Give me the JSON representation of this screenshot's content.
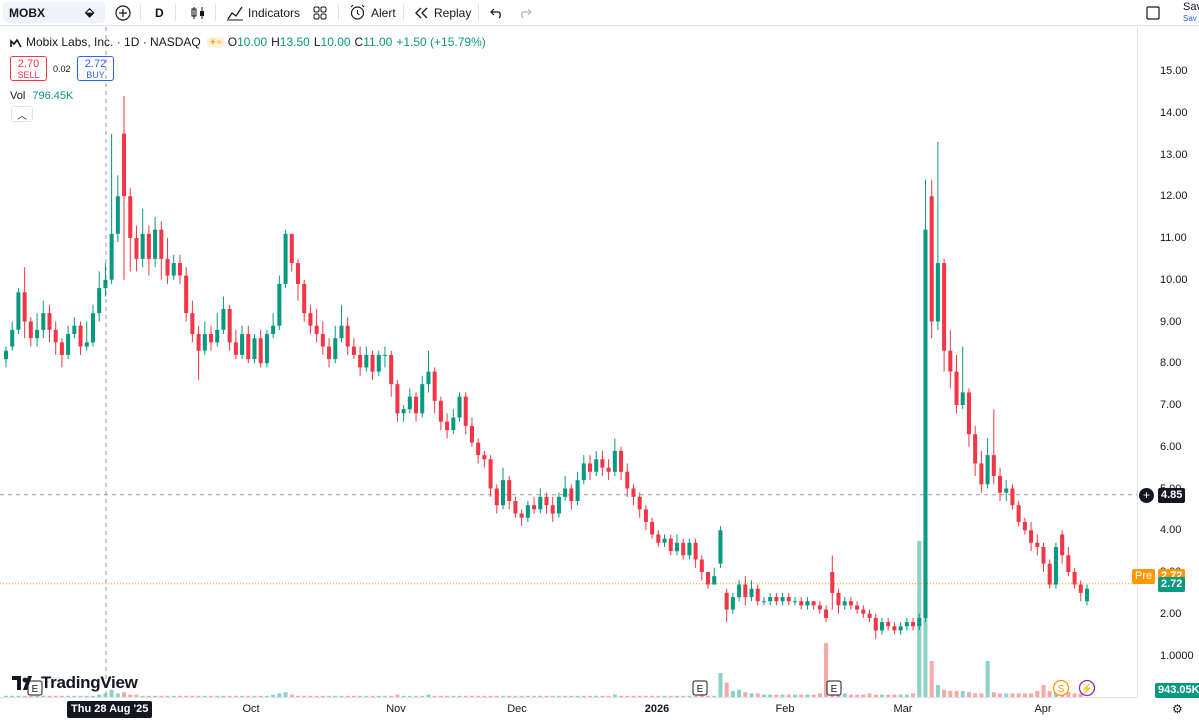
{
  "toolbar": {
    "symbol": "MOBX",
    "interval": "D",
    "indicators_label": "Indicators",
    "alert_label": "Alert",
    "replay_label": "Replay",
    "save_label": "Sav",
    "save_sub": "Sav"
  },
  "legend": {
    "title": "Mobix Labs, Inc. · 1D · NASDAQ",
    "open_label": "O",
    "open": "10.00",
    "high_label": "H",
    "high": "13.50",
    "low_label": "L",
    "low": "10.00",
    "close_label": "C",
    "close": "11.00",
    "change": "+1.50 (+15.79%)",
    "sell_price": "2.70",
    "sell_label": "SELL",
    "spread": "0.02",
    "buy_price": "2.72",
    "buy_label": "BUY",
    "vol_label": "Vol",
    "vol_value": "796.45K"
  },
  "price_axis": {
    "ticks": [
      "15.00",
      "14.00",
      "13.00",
      "12.00",
      "11.00",
      "10.00",
      "9.00",
      "8.00",
      "7.00",
      "6.00",
      "5.00",
      "4.00",
      "3.00",
      "2.00",
      "1.0000"
    ],
    "crosshair_value": "4.85",
    "pre_label": "Pre",
    "pre_value": "2.72",
    "last_value": "2.72",
    "volume_value": "943.05K"
  },
  "time_axis": {
    "crosshair_label": "Thu 28 Aug '25",
    "ticks": [
      "Oct",
      "Nov",
      "Dec",
      "2026",
      "Feb",
      "Mar",
      "Apr"
    ]
  },
  "brand": {
    "name": "TradingView"
  },
  "events": [
    {
      "type": "earnings",
      "label": "E"
    },
    {
      "type": "earnings",
      "label": "E"
    },
    {
      "type": "earnings",
      "label": "E"
    },
    {
      "type": "dividend",
      "label": "S"
    },
    {
      "type": "split",
      "label": "⚡"
    }
  ],
  "colors": {
    "up": "#089981",
    "down": "#f23645",
    "up_vol": "#8bd3c7",
    "down_vol": "#f7a9a7",
    "pre": "#ff9800"
  },
  "chart_data": {
    "type": "candlestick",
    "symbol": "MOBX",
    "ylim": [
      0.9,
      15.6
    ],
    "candles": [
      [
        8.1,
        8.3,
        7.9,
        8.4
      ],
      [
        8.4,
        8.8,
        8.3,
        9.0
      ],
      [
        8.8,
        9.7,
        8.7,
        9.8
      ],
      [
        9.7,
        9.0,
        8.6,
        10.3
      ],
      [
        9.0,
        8.6,
        8.4,
        9.1
      ],
      [
        8.6,
        8.8,
        8.4,
        9.2
      ],
      [
        8.8,
        9.2,
        8.6,
        9.5
      ],
      [
        9.2,
        8.8,
        8.5,
        9.4
      ],
      [
        8.8,
        8.5,
        8.2,
        9.0
      ],
      [
        8.5,
        8.2,
        7.9,
        8.6
      ],
      [
        8.2,
        8.7,
        8.1,
        8.9
      ],
      [
        8.7,
        8.9,
        8.6,
        9.1
      ],
      [
        8.9,
        8.4,
        8.2,
        9.0
      ],
      [
        8.4,
        8.5,
        8.3,
        9.0
      ],
      [
        8.5,
        9.2,
        8.4,
        9.4
      ],
      [
        9.2,
        9.8,
        9.0,
        10.2
      ],
      [
        9.8,
        10.0,
        9.6,
        10.4
      ],
      [
        10.0,
        11.1,
        9.9,
        13.5
      ],
      [
        11.1,
        12.0,
        10.9,
        12.5
      ],
      [
        13.5,
        12.0,
        10.0,
        14.4
      ],
      [
        12.0,
        11.0,
        10.2,
        12.2
      ],
      [
        11.0,
        10.5,
        10.2,
        11.3
      ],
      [
        10.5,
        11.1,
        10.3,
        11.7
      ],
      [
        11.1,
        10.5,
        10.1,
        11.3
      ],
      [
        10.5,
        11.2,
        10.3,
        11.5
      ],
      [
        11.2,
        10.5,
        10.0,
        11.4
      ],
      [
        10.5,
        10.1,
        9.9,
        11.0
      ],
      [
        10.1,
        10.4,
        10.0,
        10.6
      ],
      [
        10.4,
        10.1,
        9.9,
        10.6
      ],
      [
        10.1,
        9.2,
        9.0,
        10.3
      ],
      [
        9.2,
        8.7,
        8.5,
        9.5
      ],
      [
        8.7,
        8.3,
        7.6,
        8.9
      ],
      [
        8.3,
        8.7,
        8.2,
        9.0
      ],
      [
        8.7,
        8.5,
        8.3,
        8.9
      ],
      [
        8.5,
        8.8,
        8.4,
        9.2
      ],
      [
        8.8,
        9.3,
        8.7,
        9.6
      ],
      [
        9.3,
        8.5,
        8.3,
        9.4
      ],
      [
        8.5,
        8.2,
        8.1,
        8.8
      ],
      [
        8.2,
        8.7,
        8.1,
        8.9
      ],
      [
        8.7,
        8.1,
        8.0,
        8.9
      ],
      [
        8.1,
        8.6,
        8.0,
        8.7
      ],
      [
        8.6,
        8.0,
        7.9,
        8.8
      ],
      [
        8.0,
        8.7,
        7.9,
        8.8
      ],
      [
        8.7,
        8.9,
        8.6,
        9.2
      ],
      [
        8.9,
        9.9,
        8.8,
        10.1
      ],
      [
        9.9,
        11.1,
        9.8,
        11.2
      ],
      [
        11.1,
        10.4,
        10.2,
        11.1
      ],
      [
        10.4,
        9.9,
        9.5,
        10.5
      ],
      [
        9.9,
        9.2,
        9.0,
        10.0
      ],
      [
        9.2,
        8.9,
        8.7,
        9.4
      ],
      [
        8.9,
        8.7,
        8.5,
        9.3
      ],
      [
        8.7,
        8.4,
        8.2,
        9.0
      ],
      [
        8.4,
        8.1,
        7.9,
        8.6
      ],
      [
        8.1,
        8.6,
        8.0,
        8.9
      ],
      [
        8.6,
        8.9,
        8.5,
        9.4
      ],
      [
        8.9,
        8.4,
        8.2,
        9.1
      ],
      [
        8.4,
        8.2,
        8.1,
        8.6
      ],
      [
        8.2,
        7.9,
        7.7,
        8.4
      ],
      [
        7.9,
        8.2,
        7.8,
        8.4
      ],
      [
        8.2,
        7.8,
        7.6,
        8.3
      ],
      [
        7.8,
        8.2,
        7.7,
        8.3
      ],
      [
        8.2,
        8.2,
        7.9,
        8.4
      ],
      [
        8.2,
        7.5,
        7.2,
        8.3
      ],
      [
        7.5,
        6.8,
        6.6,
        7.6
      ],
      [
        6.8,
        6.9,
        6.6,
        7.0
      ],
      [
        6.9,
        7.2,
        6.8,
        7.4
      ],
      [
        7.2,
        6.8,
        6.6,
        7.3
      ],
      [
        6.8,
        7.5,
        6.7,
        7.7
      ],
      [
        7.5,
        7.8,
        7.3,
        8.3
      ],
      [
        7.8,
        7.1,
        6.8,
        7.9
      ],
      [
        7.1,
        6.6,
        6.4,
        7.2
      ],
      [
        6.6,
        6.4,
        6.2,
        6.8
      ],
      [
        6.4,
        6.7,
        6.3,
        6.9
      ],
      [
        6.7,
        7.2,
        6.6,
        7.3
      ],
      [
        7.2,
        6.5,
        6.3,
        7.3
      ],
      [
        6.5,
        6.1,
        6.0,
        6.7
      ],
      [
        6.1,
        5.8,
        5.6,
        6.2
      ],
      [
        5.8,
        5.7,
        5.5,
        5.9
      ],
      [
        5.7,
        5.0,
        4.8,
        5.8
      ],
      [
        5.0,
        4.6,
        4.4,
        5.1
      ],
      [
        4.6,
        5.2,
        4.5,
        5.5
      ],
      [
        5.2,
        4.7,
        4.5,
        5.3
      ],
      [
        4.7,
        4.4,
        4.3,
        4.8
      ],
      [
        4.4,
        4.3,
        4.1,
        4.5
      ],
      [
        4.3,
        4.6,
        4.2,
        4.7
      ],
      [
        4.6,
        4.5,
        4.4,
        4.8
      ],
      [
        4.5,
        4.8,
        4.4,
        5.0
      ],
      [
        4.8,
        4.6,
        4.4,
        4.9
      ],
      [
        4.6,
        4.4,
        4.2,
        4.8
      ],
      [
        4.4,
        4.8,
        4.3,
        4.9
      ],
      [
        4.8,
        5.0,
        4.7,
        5.3
      ],
      [
        5.0,
        4.7,
        4.5,
        5.1
      ],
      [
        4.7,
        5.2,
        4.6,
        5.4
      ],
      [
        5.2,
        5.6,
        5.1,
        5.8
      ],
      [
        5.6,
        5.4,
        5.2,
        5.8
      ],
      [
        5.4,
        5.7,
        5.3,
        5.9
      ],
      [
        5.7,
        5.5,
        5.3,
        5.9
      ],
      [
        5.5,
        5.4,
        5.2,
        5.7
      ],
      [
        5.4,
        5.9,
        5.3,
        6.2
      ],
      [
        5.9,
        5.4,
        5.2,
        6.0
      ],
      [
        5.4,
        5.0,
        4.8,
        5.6
      ],
      [
        5.0,
        4.8,
        4.6,
        5.1
      ],
      [
        4.8,
        4.5,
        4.3,
        4.9
      ],
      [
        4.5,
        4.2,
        4.0,
        4.6
      ],
      [
        4.2,
        3.9,
        3.8,
        4.3
      ],
      [
        3.9,
        3.7,
        3.6,
        4.0
      ],
      [
        3.7,
        3.8,
        3.6,
        3.9
      ],
      [
        3.8,
        3.5,
        3.4,
        3.9
      ],
      [
        3.5,
        3.7,
        3.4,
        3.9
      ],
      [
        3.7,
        3.4,
        3.3,
        3.8
      ],
      [
        3.4,
        3.7,
        3.3,
        3.8
      ],
      [
        3.7,
        3.3,
        3.1,
        3.8
      ],
      [
        3.3,
        3.0,
        2.8,
        3.4
      ],
      [
        3.0,
        2.7,
        2.6,
        3.0
      ],
      [
        2.7,
        2.9,
        2.7,
        3.1
      ],
      [
        3.2,
        4.0,
        3.1,
        4.1
      ],
      [
        2.5,
        2.1,
        1.8,
        2.6
      ],
      [
        2.1,
        2.4,
        2.0,
        2.5
      ],
      [
        2.4,
        2.7,
        2.3,
        2.8
      ],
      [
        2.7,
        2.4,
        2.2,
        2.9
      ],
      [
        2.4,
        2.6,
        2.3,
        2.8
      ],
      [
        2.6,
        2.3,
        2.2,
        2.7
      ],
      [
        2.3,
        2.3,
        2.2,
        2.4
      ],
      [
        2.3,
        2.4,
        2.2,
        2.5
      ],
      [
        2.4,
        2.3,
        2.2,
        2.5
      ],
      [
        2.3,
        2.4,
        2.2,
        2.5
      ],
      [
        2.4,
        2.3,
        2.2,
        2.5
      ],
      [
        2.3,
        2.3,
        2.2,
        2.4
      ],
      [
        2.3,
        2.2,
        2.1,
        2.4
      ],
      [
        2.2,
        2.3,
        2.1,
        2.4
      ],
      [
        2.3,
        2.2,
        2.1,
        2.3
      ],
      [
        2.2,
        2.1,
        2.0,
        2.3
      ],
      [
        2.1,
        1.9,
        1.8,
        2.2
      ],
      [
        3.0,
        2.5,
        2.1,
        3.4
      ],
      [
        2.5,
        2.2,
        2.0,
        2.6
      ],
      [
        2.2,
        2.3,
        2.1,
        2.4
      ],
      [
        2.3,
        2.2,
        2.1,
        2.4
      ],
      [
        2.2,
        2.1,
        2.0,
        2.3
      ],
      [
        2.1,
        2.0,
        1.9,
        2.2
      ],
      [
        2.0,
        1.9,
        1.8,
        2.1
      ],
      [
        1.9,
        1.6,
        1.4,
        2.0
      ],
      [
        1.6,
        1.8,
        1.5,
        1.9
      ],
      [
        1.8,
        1.7,
        1.6,
        1.9
      ],
      [
        1.7,
        1.6,
        1.5,
        1.8
      ],
      [
        1.6,
        1.7,
        1.5,
        1.8
      ],
      [
        1.7,
        1.8,
        1.6,
        1.9
      ],
      [
        1.8,
        1.7,
        1.6,
        1.9
      ],
      [
        1.7,
        1.9,
        1.6,
        2.0
      ],
      [
        1.9,
        11.2,
        1.8,
        12.4
      ],
      [
        12.0,
        9.0,
        8.6,
        12.4
      ],
      [
        9.0,
        10.4,
        8.8,
        13.3
      ],
      [
        10.4,
        8.3,
        7.8,
        10.5
      ],
      [
        8.3,
        7.8,
        7.4,
        8.8
      ],
      [
        7.8,
        7.0,
        6.8,
        8.2
      ],
      [
        7.0,
        7.3,
        6.9,
        8.4
      ],
      [
        7.3,
        6.3,
        6.0,
        7.4
      ],
      [
        6.3,
        5.6,
        5.3,
        6.5
      ],
      [
        5.6,
        5.1,
        4.9,
        5.9
      ],
      [
        5.1,
        5.8,
        5.0,
        6.2
      ],
      [
        5.8,
        5.3,
        5.1,
        6.9
      ],
      [
        5.3,
        4.9,
        4.7,
        5.5
      ],
      [
        4.9,
        5.0,
        4.7,
        5.2
      ],
      [
        5.0,
        4.6,
        4.5,
        5.1
      ],
      [
        4.6,
        4.2,
        4.1,
        4.7
      ],
      [
        4.2,
        4.0,
        3.9,
        4.3
      ],
      [
        4.0,
        3.7,
        3.5,
        4.2
      ],
      [
        3.7,
        3.6,
        3.4,
        3.9
      ],
      [
        3.6,
        3.2,
        3.0,
        3.7
      ],
      [
        3.2,
        2.7,
        2.6,
        3.3
      ],
      [
        2.7,
        3.6,
        2.6,
        3.7
      ],
      [
        3.9,
        3.4,
        3.2,
        4.0
      ],
      [
        3.4,
        3.0,
        2.9,
        3.6
      ],
      [
        3.0,
        2.7,
        2.6,
        3.1
      ],
      [
        2.7,
        2.5,
        2.3,
        2.8
      ],
      [
        2.3,
        2.6,
        2.2,
        2.7
      ]
    ],
    "volumes": [
      0.1,
      0.1,
      0.1,
      0.1,
      0.1,
      0.1,
      0.1,
      0.1,
      0.1,
      0.1,
      0.1,
      0.1,
      0.1,
      0.1,
      0.1,
      0.2,
      0.3,
      0.6,
      0.3,
      0.4,
      0.2,
      0.2,
      0.1,
      0.1,
      0.1,
      0.1,
      0.1,
      0.1,
      0.1,
      0.1,
      0.1,
      0.1,
      0.1,
      0.1,
      0.1,
      0.1,
      0.1,
      0.1,
      0.1,
      0.1,
      0.1,
      0.1,
      0.1,
      0.2,
      0.3,
      0.4,
      0.2,
      0.1,
      0.1,
      0.1,
      0.1,
      0.1,
      0.1,
      0.1,
      0.1,
      0.1,
      0.1,
      0.1,
      0.1,
      0.1,
      0.1,
      0.1,
      0.1,
      0.2,
      0.1,
      0.1,
      0.1,
      0.1,
      0.2,
      0.1,
      0.1,
      0.1,
      0.1,
      0.1,
      0.1,
      0.1,
      0.1,
      0.1,
      0.1,
      0.1,
      0.1,
      0.1,
      0.1,
      0.1,
      0.1,
      0.1,
      0.1,
      0.1,
      0.1,
      0.1,
      0.1,
      0.1,
      0.1,
      0.1,
      0.1,
      0.1,
      0.1,
      0.1,
      0.2,
      0.1,
      0.1,
      0.1,
      0.1,
      0.1,
      0.1,
      0.1,
      0.1,
      0.1,
      0.1,
      0.1,
      0.1,
      0.1,
      0.2,
      0.1,
      0.1,
      2.0,
      1.2,
      0.5,
      0.6,
      0.4,
      0.3,
      0.3,
      0.2,
      0.2,
      0.2,
      0.2,
      0.2,
      0.2,
      0.2,
      0.2,
      0.2,
      0.3,
      4.5,
      0.8,
      0.4,
      0.3,
      0.2,
      0.2,
      0.2,
      0.3,
      0.2,
      0.2,
      0.2,
      0.2,
      0.2,
      0.2,
      0.3,
      13.0,
      7.0,
      3.0,
      1.0,
      0.6,
      0.5,
      0.5,
      0.5,
      0.4,
      0.3,
      0.3,
      3.0,
      0.4,
      0.3,
      0.3,
      0.3,
      0.3,
      0.3,
      0.3,
      0.5,
      1.0,
      0.5,
      0.4,
      0.4,
      0.4,
      0.3,
      0.3
    ]
  }
}
